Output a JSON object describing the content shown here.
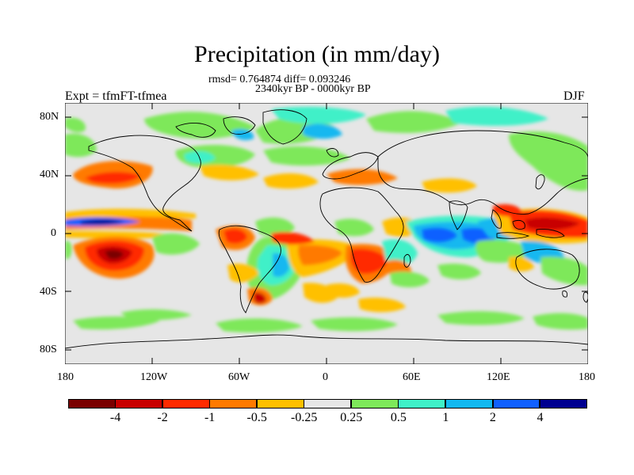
{
  "title": "Precipitation (in mm/day)",
  "stats": "rmsd= 0.764874 diff= 0.093246",
  "period": "2340kyr BP - 0000kyr BP",
  "experiment": "Expt = tfmFT-tfmea",
  "season": "DJF",
  "lat_labels": [
    "80N",
    "40N",
    "0",
    "40S",
    "80S"
  ],
  "lon_labels": [
    "180",
    "120W",
    "60W",
    "0",
    "60E",
    "120E",
    "180"
  ],
  "colorbar": {
    "labels": [
      "-4",
      "-2",
      "-1",
      "-0.5",
      "-0.25",
      "0.25",
      "0.5",
      "1",
      "2",
      "4"
    ],
    "colors": [
      "#7a0000",
      "#c80000",
      "#ff2a00",
      "#ff7a00",
      "#ffc000",
      "#e6e6e6",
      "#7ee85a",
      "#3ff0c8",
      "#12b8f0",
      "#1060ff",
      "#000090"
    ]
  }
}
